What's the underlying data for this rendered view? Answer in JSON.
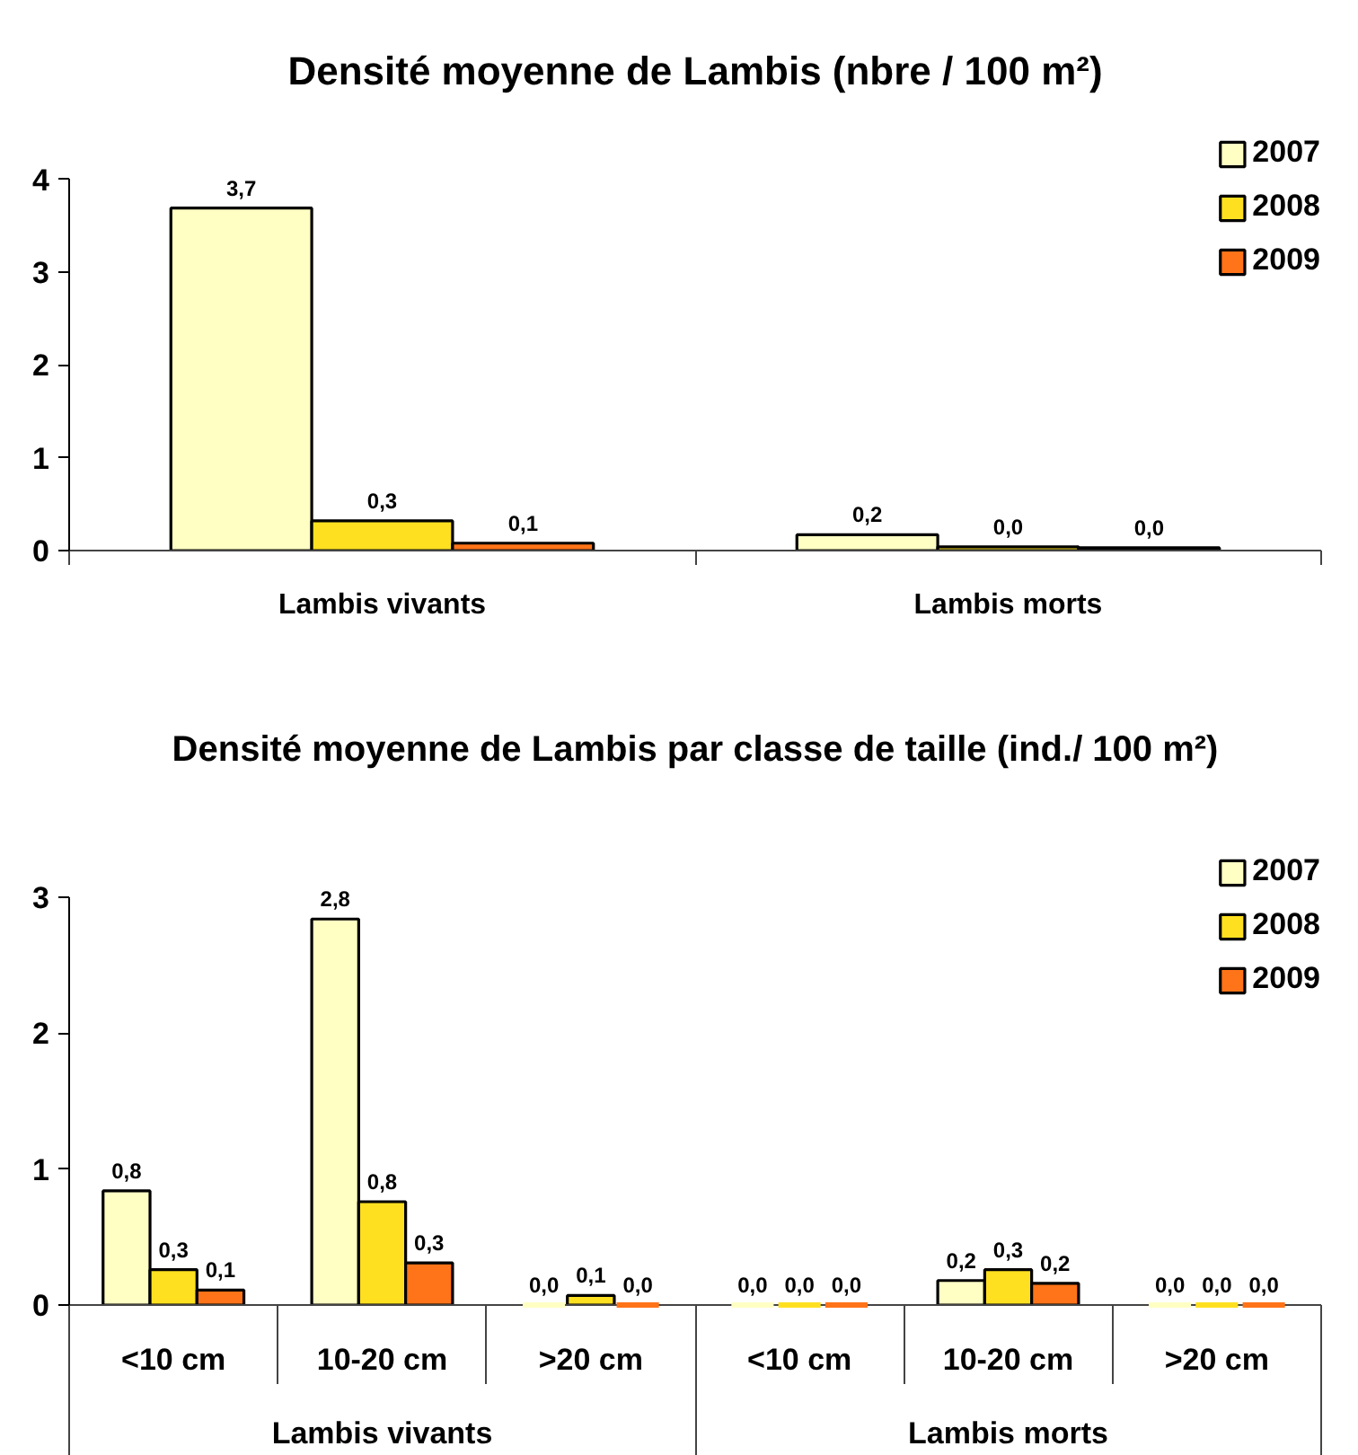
{
  "chart_data": [
    {
      "type": "bar",
      "title": "Densité moyenne de Lambis (nbre / 100 m²)",
      "categories": [
        "Lambis vivants",
        "Lambis morts"
      ],
      "series": [
        {
          "name": "2007",
          "color": "#ffffc4",
          "values": [
            3.69,
            0.17
          ],
          "value_labels": [
            "3,7",
            "0,2"
          ]
        },
        {
          "name": "2008",
          "color": "#ffe020",
          "values": [
            0.32,
            0.04
          ],
          "value_labels": [
            "0,3",
            "0,0"
          ]
        },
        {
          "name": "2009",
          "color": "#ff7418",
          "values": [
            0.08,
            0.03
          ],
          "value_labels": [
            "0,1",
            "0,0"
          ]
        }
      ],
      "ylim": [
        0,
        4
      ],
      "yticks": [
        0,
        1,
        2,
        3,
        4
      ],
      "legend": "top right"
    },
    {
      "type": "bar",
      "title": "Densité moyenne de Lambis par classe de taille (ind./ 100 m²)",
      "categories": [
        "<10 cm",
        "10-20 cm",
        ">20 cm",
        "<10 cm",
        "10-20 cm",
        ">20 cm"
      ],
      "series": [
        {
          "name": "2007",
          "color": "#ffffc4",
          "values": [
            0.84,
            2.84,
            0,
            0,
            0.18,
            0
          ],
          "value_labels": [
            "0,8",
            "2,8",
            "0,0",
            "0,0",
            "0,2",
            "0,0"
          ]
        },
        {
          "name": "2008",
          "color": "#ffe020",
          "values": [
            0.26,
            0.76,
            0.07,
            0,
            0.26,
            0
          ],
          "value_labels": [
            "0,3",
            "0,8",
            "0,1",
            "0,0",
            "0,3",
            "0,0"
          ]
        },
        {
          "name": "2009",
          "color": "#ff7418",
          "values": [
            0.11,
            0.31,
            0,
            0,
            0.16,
            0
          ],
          "value_labels": [
            "0,1",
            "0,3",
            "0,0",
            "0,0",
            "0,2",
            "0,0"
          ]
        }
      ],
      "ylim": [
        0,
        3
      ],
      "yticks": [
        0,
        1,
        2,
        3
      ],
      "legend": "top right",
      "annotations": [
        "Lambis vivants",
        "Lambis morts"
      ]
    }
  ]
}
